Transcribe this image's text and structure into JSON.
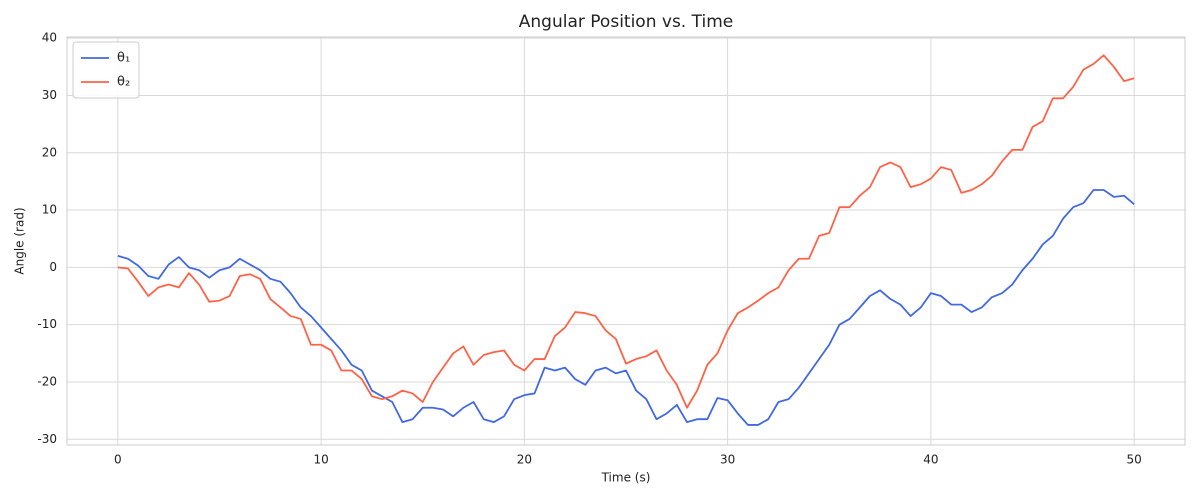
{
  "chart_data": {
    "type": "line",
    "title": "Angular Position vs. Time",
    "x_label": "Time (s)",
    "y_label": "Angle (rad)",
    "x": [
      0,
      0.5,
      1,
      1.5,
      2,
      2.5,
      3,
      3.5,
      4,
      4.5,
      5,
      5.5,
      6,
      6.5,
      7,
      7.5,
      8,
      8.5,
      9,
      9.5,
      10,
      10.5,
      11,
      11.5,
      12,
      12.5,
      13,
      13.5,
      14,
      14.5,
      15,
      15.5,
      16,
      16.5,
      17,
      17.5,
      18,
      18.5,
      19,
      19.5,
      20,
      20.5,
      21,
      21.5,
      22,
      22.5,
      23,
      23.5,
      24,
      24.5,
      25,
      25.5,
      26,
      26.5,
      27,
      27.5,
      28,
      28.5,
      29,
      29.5,
      30,
      30.5,
      31,
      31.5,
      32,
      32.5,
      33,
      33.5,
      34,
      34.5,
      35,
      35.5,
      36,
      36.5,
      37,
      37.5,
      38,
      38.5,
      39,
      39.5,
      40,
      40.5,
      41,
      41.5,
      42,
      42.5,
      43,
      43.5,
      44,
      44.5,
      45,
      45.5,
      46,
      46.5,
      47,
      47.5,
      48,
      48.5,
      49,
      49.5,
      50
    ],
    "series": [
      {
        "name": "θ₁",
        "color": "#4169e1",
        "values": [
          2,
          1.5,
          0.3,
          -1.5,
          -2,
          0.5,
          1.8,
          0,
          -0.5,
          -1.8,
          -0.5,
          0,
          1.5,
          0.5,
          -0.5,
          -2,
          -2.5,
          -4.5,
          -7,
          -8.5,
          -10.5,
          -12.5,
          -14.5,
          -17,
          -18,
          -21.5,
          -22.5,
          -23.5,
          -27,
          -26.5,
          -24.5,
          -24.5,
          -24.8,
          -26,
          -24.5,
          -23.5,
          -26.5,
          -27,
          -26,
          -23,
          -22.3,
          -22,
          -17.5,
          -18,
          -17.5,
          -19.5,
          -20.5,
          -18,
          -17.5,
          -18.5,
          -18,
          -21.5,
          -23,
          -26.5,
          -25.5,
          -24,
          -27,
          -26.5,
          -26.5,
          -22.8,
          -23.2,
          -25.5,
          -27.5,
          -27.5,
          -26.5,
          -23.5,
          -23,
          -21,
          -18.5,
          -16,
          -13.5,
          -10,
          -9,
          -7,
          -5,
          -4,
          -5.5,
          -6.5,
          -8.5,
          -7,
          -4.5,
          -5,
          -6.5,
          -6.5,
          -7.8,
          -7,
          -5.2,
          -4.5,
          -3,
          -0.5,
          1.5,
          4,
          5.5,
          8.5,
          10.5,
          11.2,
          13.5,
          13.5,
          12.3,
          12.5,
          11
        ]
      },
      {
        "name": "θ₂",
        "color": "#ff6347",
        "values": [
          0,
          -0.2,
          -2.5,
          -5,
          -3.5,
          -3,
          -3.5,
          -1,
          -3,
          -6,
          -5.8,
          -5,
          -1.5,
          -1.2,
          -2,
          -5.5,
          -7,
          -8.5,
          -9,
          -13.5,
          -13.5,
          -14.5,
          -18,
          -18,
          -19.5,
          -22.5,
          -23,
          -22.5,
          -21.5,
          -22,
          -23.5,
          -20,
          -17.5,
          -15,
          -13.8,
          -17,
          -15.3,
          -14.8,
          -14.5,
          -17,
          -18,
          -16,
          -16,
          -12,
          -10.5,
          -7.8,
          -8,
          -8.5,
          -11,
          -12.5,
          -16.8,
          -16,
          -15.5,
          -14.5,
          -18,
          -20.5,
          -24.5,
          -21.5,
          -17,
          -15,
          -11,
          -8,
          -7,
          -5.8,
          -4.5,
          -3.5,
          -0.5,
          1.5,
          1.5,
          5.5,
          6,
          10.5,
          10.5,
          12.5,
          14,
          17.5,
          18.3,
          17.5,
          14,
          14.5,
          15.5,
          17.5,
          17,
          13,
          13.5,
          14.5,
          16,
          18.5,
          20.5,
          20.5,
          24.5,
          25.5,
          29.5,
          29.5,
          31.5,
          34.5,
          35.5,
          37,
          35,
          32.5,
          33
        ]
      }
    ],
    "xlim": [
      -2.5,
      52.5
    ],
    "ylim": [
      -31,
      40.2
    ],
    "xticks": [
      0,
      10,
      20,
      30,
      40,
      50
    ],
    "yticks": [
      -30,
      -20,
      -10,
      0,
      10,
      20,
      30,
      40
    ],
    "grid": true,
    "legend": "upper left"
  }
}
